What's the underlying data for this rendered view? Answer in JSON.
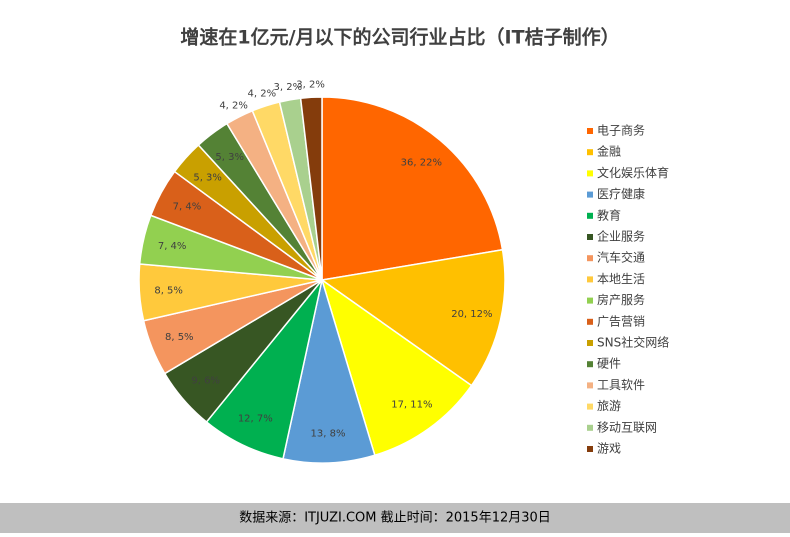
{
  "chart_data": {
    "type": "pie",
    "title": "增速在1亿元/月以下的公司行业占比（IT桔子制作）",
    "footer": "数据来源：ITJUZI.COM 截止时间：2015年12月30日",
    "categories": [
      "电子商务",
      "金融",
      "文化娱乐体育",
      "医疗健康",
      "教育",
      "企业服务",
      "汽车交通",
      "本地生活",
      "房产服务",
      "广告营销",
      "SNS社交网络",
      "硬件",
      "工具软件",
      "旅游",
      "移动互联网",
      "游戏"
    ],
    "values": [
      36,
      20,
      17,
      13,
      12,
      9,
      8,
      8,
      7,
      7,
      5,
      5,
      4,
      4,
      3,
      3
    ],
    "value_labels": [
      "36, 22%",
      "20, 12%",
      "17, 11%",
      "13, 8%",
      "12, 7%",
      "9, 6%",
      "8, 5%",
      "8, 5%",
      "7, 4%",
      "7, 4%",
      "5, 3%",
      "5, 3%",
      "4, 2%",
      "4, 2%",
      "3, 2%",
      "3, 2%"
    ],
    "colors": [
      "#ff6600",
      "#ffc000",
      "#ffff00",
      "#5b9bd5",
      "#00b050",
      "#375623",
      "#f4955e",
      "#ffc93c",
      "#92d050",
      "#d9601a",
      "#c9a000",
      "#548235",
      "#f4b183",
      "#ffd966",
      "#a9d08e",
      "#843c0c"
    ],
    "legend": "right"
  }
}
